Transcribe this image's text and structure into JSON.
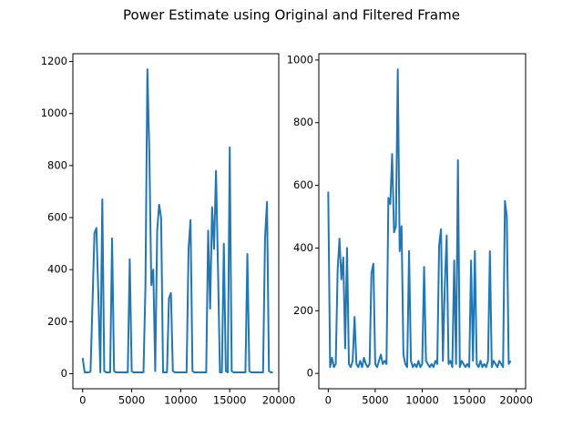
{
  "title": "Power Estimate using Original and Filtered Frame",
  "chart_data": [
    {
      "type": "line",
      "x": [
        0,
        200,
        400,
        600,
        800,
        1000,
        1200,
        1400,
        1600,
        1800,
        2000,
        2200,
        2400,
        2600,
        2800,
        3000,
        3200,
        3400,
        3600,
        3800,
        4000,
        4200,
        4400,
        4600,
        4800,
        5000,
        5200,
        5400,
        5600,
        5800,
        6000,
        6200,
        6400,
        6600,
        6800,
        7000,
        7200,
        7400,
        7600,
        7800,
        8000,
        8200,
        8400,
        8600,
        8800,
        9000,
        9200,
        9400,
        9600,
        9800,
        10000,
        10200,
        10400,
        10600,
        10800,
        11000,
        11200,
        11400,
        11600,
        11800,
        12000,
        12200,
        12400,
        12600,
        12800,
        13000,
        13200,
        13400,
        13600,
        13800,
        14000,
        14200,
        14400,
        14600,
        14800,
        15000,
        15200,
        15400,
        15600,
        15800,
        16000,
        16200,
        16400,
        16600,
        16800,
        17000,
        17200,
        17400,
        17600,
        17800,
        18000,
        18200,
        18400,
        18600,
        18800,
        19000,
        19200,
        19400
      ],
      "series": [
        {
          "color": "#1f77b4",
          "values": [
            60,
            5,
            5,
            5,
            8,
            270,
            540,
            560,
            300,
            5,
            670,
            10,
            5,
            5,
            5,
            520,
            10,
            5,
            5,
            5,
            5,
            5,
            5,
            5,
            440,
            10,
            5,
            5,
            5,
            5,
            5,
            5,
            330,
            1170,
            850,
            340,
            400,
            10,
            550,
            650,
            600,
            5,
            5,
            5,
            290,
            310,
            10,
            5,
            5,
            5,
            5,
            5,
            5,
            5,
            480,
            590,
            10,
            5,
            5,
            5,
            5,
            5,
            5,
            5,
            550,
            250,
            640,
            480,
            780,
            410,
            5,
            5,
            500,
            10,
            5,
            870,
            10,
            5,
            5,
            5,
            5,
            5,
            5,
            5,
            460,
            10,
            5,
            5,
            5,
            5,
            5,
            5,
            5,
            520,
            660,
            10,
            5,
            5
          ]
        }
      ],
      "xlim": [
        -1000,
        20000
      ],
      "xticks": [
        0,
        5000,
        10000,
        15000,
        20000
      ],
      "ylim": [
        -58,
        1230
      ],
      "yticks": [
        0,
        200,
        400,
        600,
        800,
        1000,
        1200
      ]
    },
    {
      "type": "line",
      "x": [
        0,
        200,
        400,
        600,
        800,
        1000,
        1200,
        1400,
        1600,
        1800,
        2000,
        2200,
        2400,
        2600,
        2800,
        3000,
        3200,
        3400,
        3600,
        3800,
        4000,
        4200,
        4400,
        4600,
        4800,
        5000,
        5200,
        5400,
        5600,
        5800,
        6000,
        6200,
        6400,
        6600,
        6800,
        7000,
        7200,
        7400,
        7600,
        7800,
        8000,
        8200,
        8400,
        8600,
        8800,
        9000,
        9200,
        9400,
        9600,
        9800,
        10000,
        10200,
        10400,
        10600,
        10800,
        11000,
        11200,
        11400,
        11600,
        11800,
        12000,
        12200,
        12400,
        12600,
        12800,
        13000,
        13200,
        13400,
        13600,
        13800,
        14000,
        14200,
        14400,
        14600,
        14800,
        15000,
        15200,
        15400,
        15600,
        15800,
        16000,
        16200,
        16400,
        16600,
        16800,
        17000,
        17200,
        17400,
        17600,
        17800,
        18000,
        18200,
        18400,
        18600,
        18800,
        19000,
        19200,
        19400
      ],
      "series": [
        {
          "color": "#1f77b4",
          "values": [
            580,
            20,
            50,
            20,
            30,
            330,
            430,
            300,
            370,
            80,
            400,
            30,
            20,
            40,
            180,
            30,
            20,
            40,
            20,
            50,
            30,
            20,
            30,
            320,
            350,
            30,
            20,
            40,
            60,
            30,
            40,
            30,
            560,
            540,
            700,
            450,
            470,
            970,
            390,
            470,
            60,
            30,
            20,
            390,
            40,
            20,
            30,
            20,
            40,
            20,
            30,
            340,
            40,
            30,
            20,
            30,
            20,
            40,
            30,
            410,
            460,
            40,
            280,
            440,
            30,
            40,
            20,
            360,
            30,
            680,
            20,
            40,
            30,
            20,
            30,
            20,
            360,
            40,
            390,
            30,
            20,
            40,
            20,
            30,
            20,
            40,
            390,
            20,
            40,
            30,
            20,
            40,
            30,
            20,
            550,
            500,
            30,
            40
          ]
        }
      ],
      "xlim": [
        -1000,
        21000
      ],
      "xticks": [
        0,
        5000,
        10000,
        15000,
        20000
      ],
      "ylim": [
        -49,
        1020
      ],
      "yticks": [
        0,
        200,
        400,
        600,
        800,
        1000
      ]
    }
  ]
}
